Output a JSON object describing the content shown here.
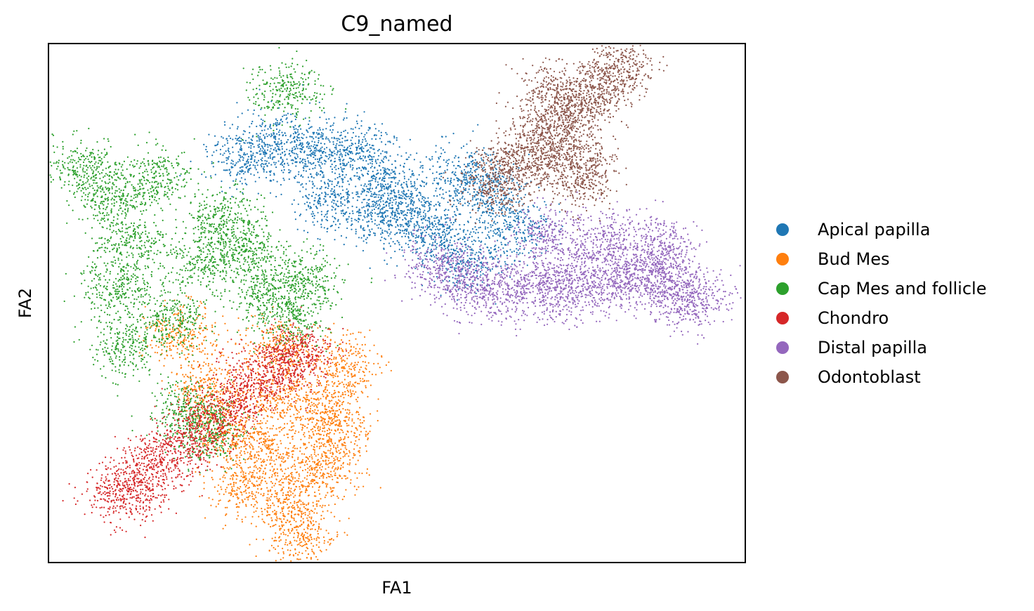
{
  "chart_data": {
    "type": "scatter",
    "title": "C9_named",
    "xlabel": "FA1",
    "ylabel": "FA2",
    "xticks": [],
    "yticks": [],
    "grid": false,
    "legend_position": "right",
    "series": [
      {
        "name": "Apical papilla",
        "color": "#1f77b4",
        "points": [
          [
            0.28,
            0.78
          ],
          [
            0.33,
            0.81
          ],
          [
            0.38,
            0.8
          ],
          [
            0.44,
            0.79
          ],
          [
            0.49,
            0.74
          ],
          [
            0.52,
            0.68
          ],
          [
            0.55,
            0.63
          ],
          [
            0.6,
            0.58
          ],
          [
            0.63,
            0.71
          ],
          [
            0.67,
            0.64
          ],
          [
            0.6,
            0.75
          ],
          [
            0.4,
            0.7
          ],
          [
            0.47,
            0.67
          ]
        ]
      },
      {
        "name": "Bud Mes",
        "color": "#ff7f0e",
        "points": [
          [
            0.19,
            0.44
          ],
          [
            0.23,
            0.33
          ],
          [
            0.25,
            0.26
          ],
          [
            0.28,
            0.15
          ],
          [
            0.31,
            0.22
          ],
          [
            0.33,
            0.32
          ],
          [
            0.35,
            0.12
          ],
          [
            0.36,
            0.05
          ],
          [
            0.39,
            0.18
          ],
          [
            0.4,
            0.3
          ],
          [
            0.42,
            0.38
          ],
          [
            0.41,
            0.24
          ],
          [
            0.33,
            0.42
          ]
        ]
      },
      {
        "name": "Cap Mes and follicle",
        "color": "#2ca02c",
        "points": [
          [
            0.05,
            0.76
          ],
          [
            0.09,
            0.7
          ],
          [
            0.15,
            0.74
          ],
          [
            0.12,
            0.61
          ],
          [
            0.1,
            0.53
          ],
          [
            0.11,
            0.42
          ],
          [
            0.18,
            0.47
          ],
          [
            0.22,
            0.58
          ],
          [
            0.25,
            0.66
          ],
          [
            0.28,
            0.61
          ],
          [
            0.31,
            0.53
          ],
          [
            0.35,
            0.47
          ],
          [
            0.37,
            0.55
          ],
          [
            0.2,
            0.29
          ],
          [
            0.23,
            0.25
          ],
          [
            0.34,
            0.91
          ]
        ]
      },
      {
        "name": "Chondro",
        "color": "#d62728",
        "points": [
          [
            0.1,
            0.13
          ],
          [
            0.13,
            0.16
          ],
          [
            0.17,
            0.2
          ],
          [
            0.21,
            0.25
          ],
          [
            0.25,
            0.29
          ],
          [
            0.29,
            0.34
          ],
          [
            0.33,
            0.38
          ],
          [
            0.36,
            0.4
          ]
        ]
      },
      {
        "name": "Distal papilla",
        "color": "#9467bd",
        "points": [
          [
            0.56,
            0.57
          ],
          [
            0.6,
            0.54
          ],
          [
            0.65,
            0.52
          ],
          [
            0.7,
            0.55
          ],
          [
            0.74,
            0.52
          ],
          [
            0.78,
            0.54
          ],
          [
            0.83,
            0.55
          ],
          [
            0.87,
            0.56
          ],
          [
            0.9,
            0.52
          ],
          [
            0.93,
            0.51
          ],
          [
            0.88,
            0.61
          ],
          [
            0.8,
            0.62
          ],
          [
            0.72,
            0.63
          ]
        ]
      },
      {
        "name": "Odontoblast",
        "color": "#8c564b",
        "points": [
          [
            0.64,
            0.73
          ],
          [
            0.67,
            0.76
          ],
          [
            0.7,
            0.8
          ],
          [
            0.73,
            0.84
          ],
          [
            0.76,
            0.88
          ],
          [
            0.79,
            0.92
          ],
          [
            0.82,
            0.95
          ],
          [
            0.75,
            0.78
          ],
          [
            0.77,
            0.74
          ],
          [
            0.72,
            0.9
          ]
        ]
      }
    ]
  }
}
